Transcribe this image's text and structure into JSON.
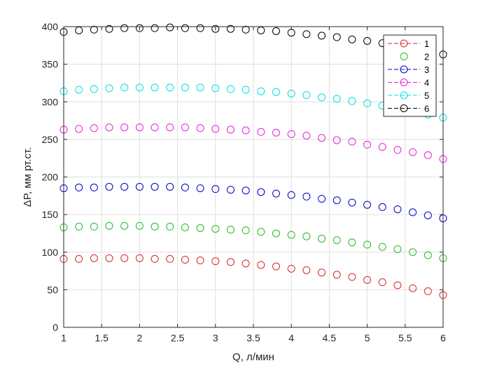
{
  "chart_data": {
    "type": "scatter",
    "xlabel": "Q, л/мин",
    "ylabel": "ΔP, мм рт.ст.",
    "xlim": [
      1,
      6
    ],
    "ylim": [
      0,
      400
    ],
    "xticks": [
      1,
      1.5,
      2,
      2.5,
      3,
      3.5,
      4,
      4.5,
      5,
      5.5,
      6
    ],
    "xtick_labels": [
      "1",
      "1.5",
      "2",
      "2.5",
      "3",
      "3.5",
      "4",
      "4.5",
      "5",
      "5.5",
      "6"
    ],
    "yticks": [
      0,
      50,
      100,
      150,
      200,
      250,
      300,
      350,
      400
    ],
    "ytick_labels": [
      "0",
      "50",
      "100",
      "150",
      "200",
      "250",
      "300",
      "350",
      "400"
    ],
    "grid": true,
    "legend_position": "top-right",
    "x": [
      1,
      1.2,
      1.4,
      1.6,
      1.8,
      2,
      2.2,
      2.4,
      2.6,
      2.8,
      3,
      3.2,
      3.4,
      3.6,
      3.8,
      4,
      4.2,
      4.4,
      4.6,
      4.8,
      5,
      5.2,
      5.4,
      5.6,
      5.8,
      6
    ],
    "series": [
      {
        "name": "1",
        "color": "#d62728",
        "line_style": "dashed-red-with-circle",
        "values": [
          91,
          91,
          92,
          92,
          92,
          92,
          91,
          91,
          90,
          89,
          88,
          87,
          85,
          83,
          81,
          78,
          76,
          73,
          70,
          67,
          63,
          60,
          56,
          52,
          48,
          43
        ]
      },
      {
        "name": "2",
        "color": "#22bb22",
        "line_style": "none",
        "values": [
          133,
          134,
          134,
          135,
          135,
          135,
          134,
          134,
          133,
          132,
          131,
          130,
          129,
          127,
          125,
          123,
          121,
          118,
          116,
          113,
          110,
          107,
          104,
          100,
          96,
          92
        ]
      },
      {
        "name": "3",
        "color": "#0000c8",
        "line_style": "dashed",
        "values": [
          185,
          186,
          186,
          187,
          187,
          187,
          187,
          187,
          186,
          185,
          184,
          183,
          182,
          180,
          178,
          176,
          174,
          171,
          169,
          166,
          163,
          160,
          157,
          153,
          149,
          145
        ]
      },
      {
        "name": "4",
        "color": "#e020e0",
        "line_style": "dashed",
        "values": [
          263,
          264,
          265,
          266,
          266,
          266,
          266,
          266,
          266,
          265,
          264,
          263,
          262,
          260,
          259,
          257,
          255,
          252,
          249,
          247,
          243,
          240,
          236,
          233,
          229,
          224
        ]
      },
      {
        "name": "5",
        "color": "#00e0e0",
        "line_style": "dashed",
        "values": [
          314,
          316,
          317,
          318,
          319,
          319,
          319,
          319,
          319,
          319,
          318,
          317,
          316,
          314,
          313,
          311,
          309,
          306,
          304,
          301,
          298,
          295,
          291,
          287,
          283,
          279
        ]
      },
      {
        "name": "6",
        "color": "#000000",
        "line_style": "dashed",
        "values": [
          393,
          395,
          396,
          397,
          398,
          398,
          398,
          399,
          398,
          398,
          397,
          397,
          396,
          395,
          394,
          392,
          390,
          388,
          386,
          383,
          381,
          378,
          374,
          371,
          367,
          363
        ]
      }
    ]
  }
}
